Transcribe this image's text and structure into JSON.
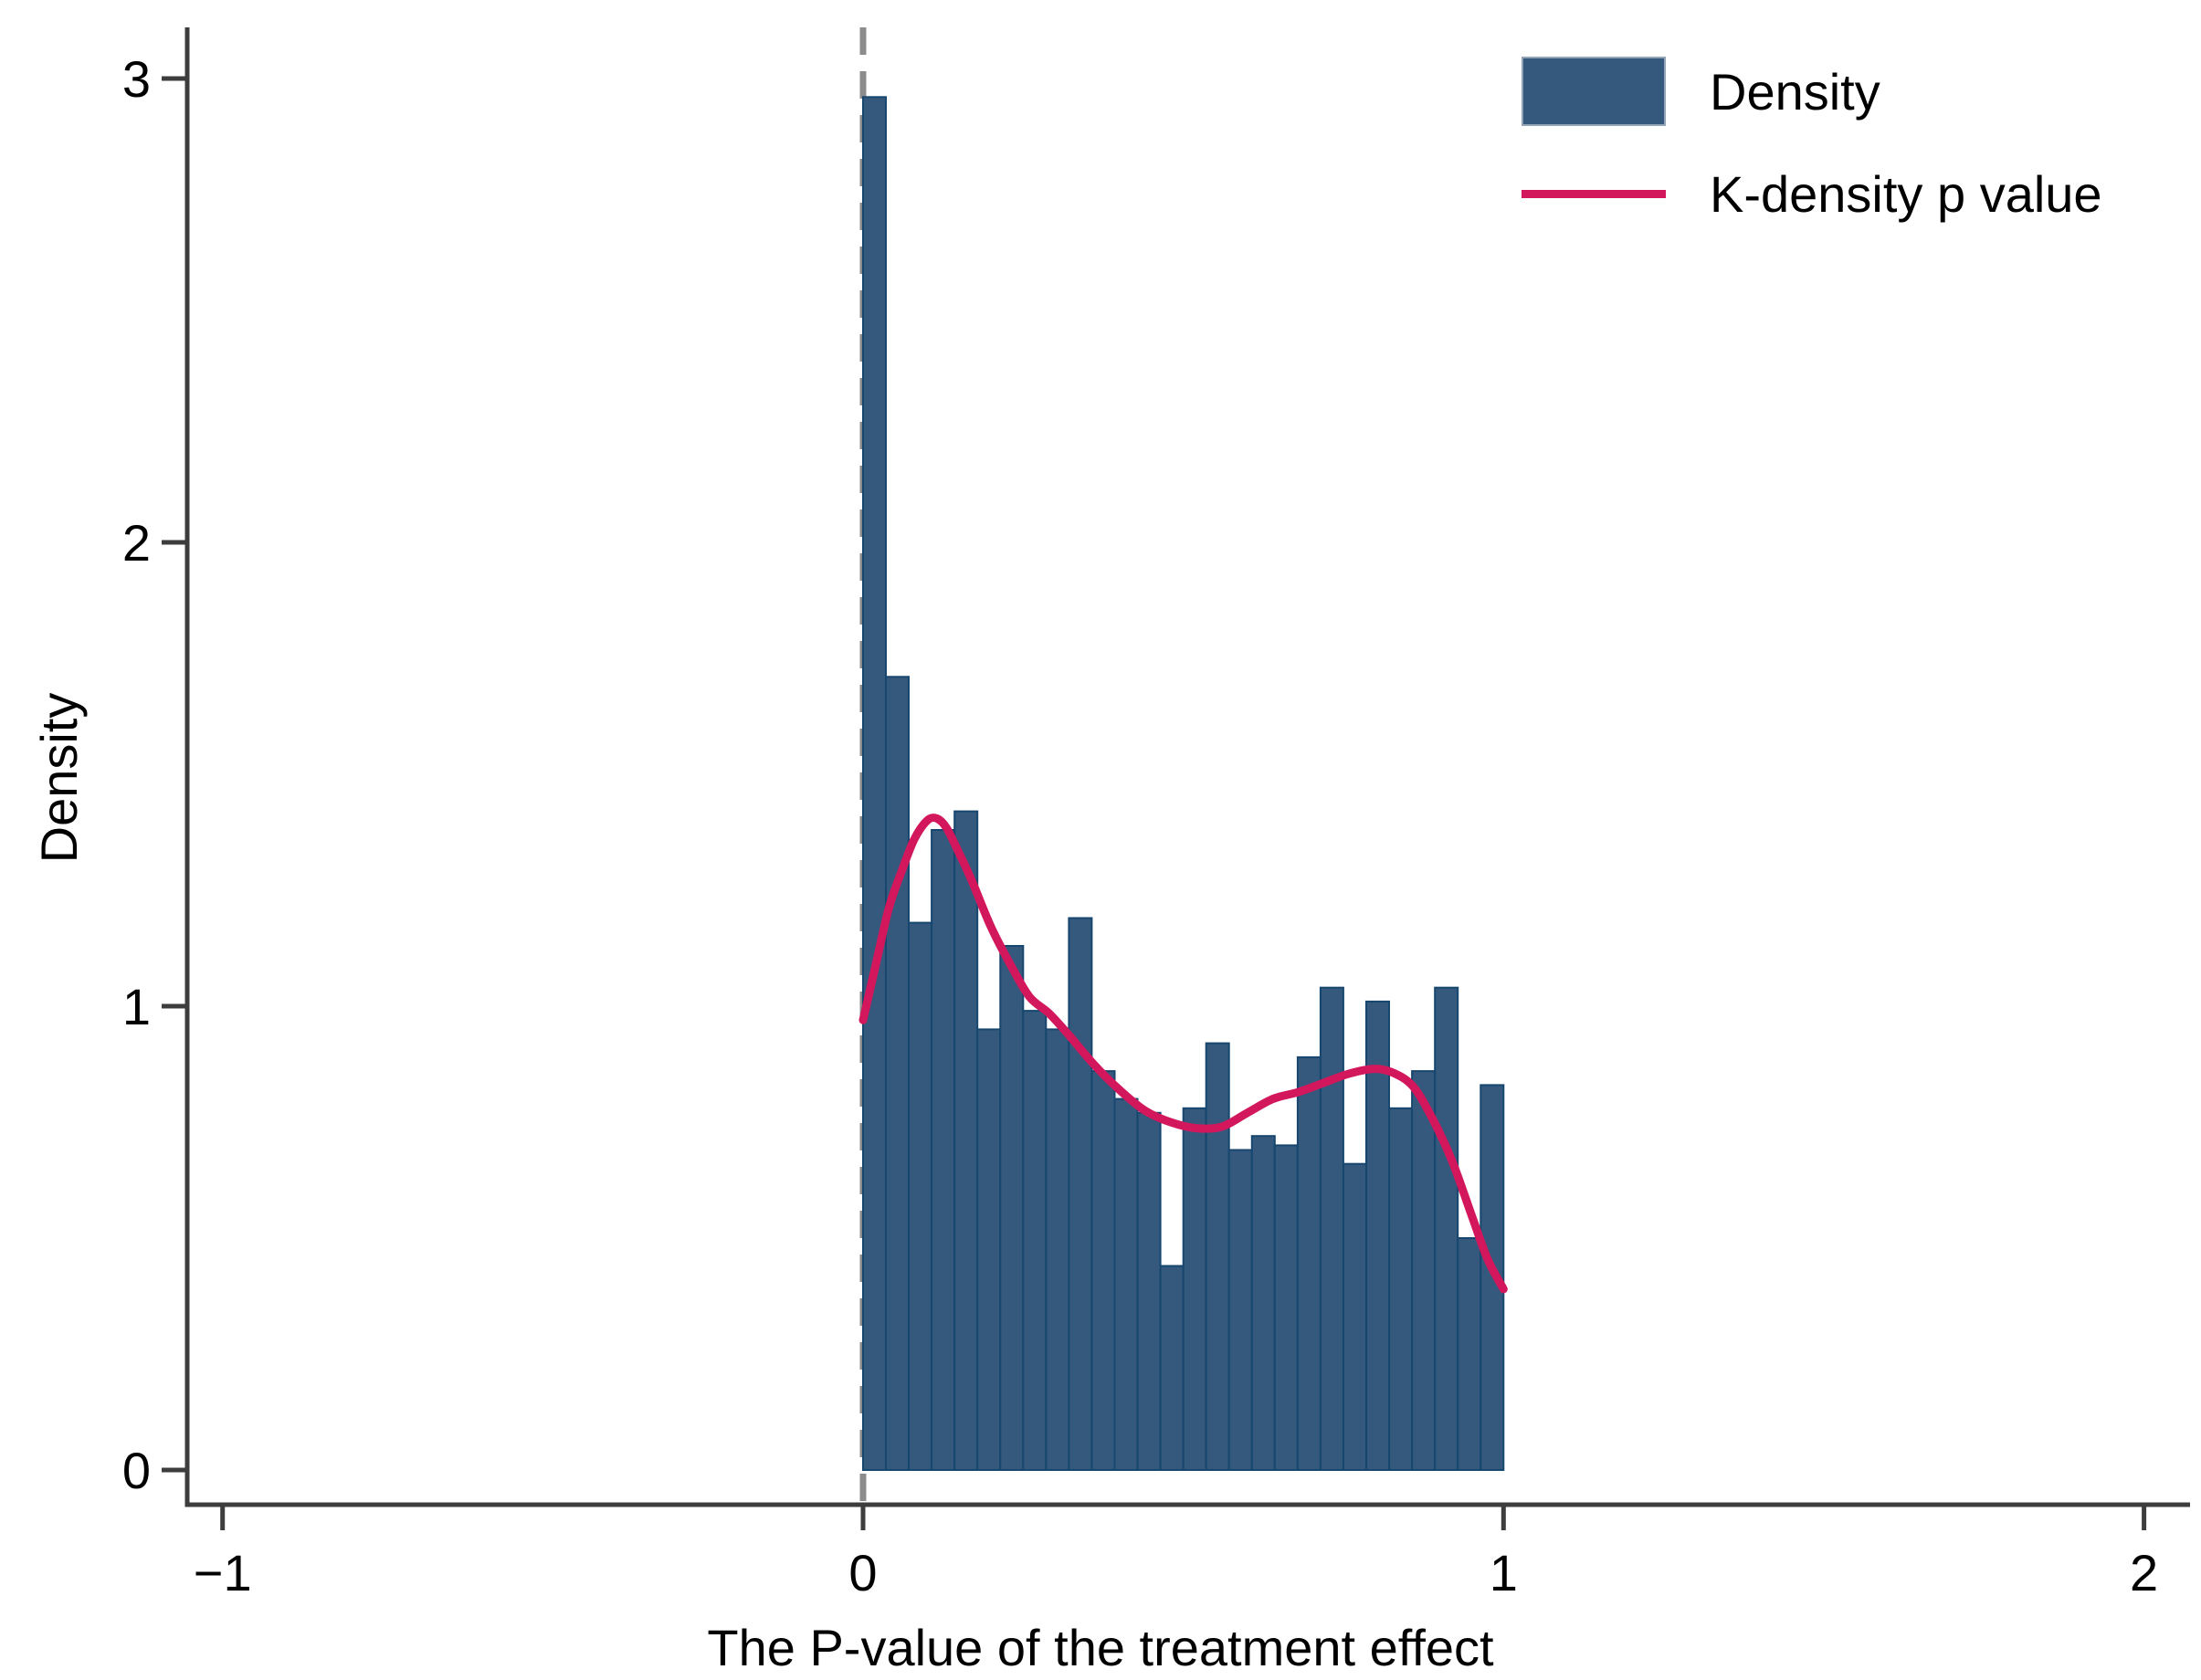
{
  "chart_data": {
    "type": "bar",
    "subtype": "histogram-with-kde-overlay",
    "title": "",
    "xlabel": "The P-value of the treatment effect",
    "ylabel": "Density",
    "xlim": [
      -1.35,
      2.1
    ],
    "ylim": [
      0,
      3.1
    ],
    "grid": false,
    "x_ticks": [
      {
        "v": -1,
        "label": "−1"
      },
      {
        "v": 0,
        "label": "0"
      },
      {
        "v": 1,
        "label": "1"
      },
      {
        "v": 2,
        "label": "2"
      }
    ],
    "y_ticks": [
      {
        "v": 0,
        "label": "0"
      },
      {
        "v": 1,
        "label": "1"
      },
      {
        "v": 2,
        "label": "2"
      },
      {
        "v": 3,
        "label": "3"
      }
    ],
    "histogram": {
      "bin_start": 0,
      "bin_width": 0.0357143,
      "densities": [
        2.96,
        1.71,
        1.18,
        1.38,
        1.42,
        0.95,
        1.13,
        0.99,
        0.95,
        1.19,
        0.86,
        0.8,
        0.77,
        0.44,
        0.78,
        0.92,
        0.69,
        0.72,
        0.7,
        0.89,
        1.04,
        0.66,
        1.01,
        0.78,
        0.86,
        1.04,
        0.5,
        0.83
      ]
    },
    "kde": {
      "name": "K-density p value",
      "points": [
        [
          0.0,
          0.97
        ],
        [
          0.02,
          1.09
        ],
        [
          0.04,
          1.21
        ],
        [
          0.06,
          1.29
        ],
        [
          0.08,
          1.36
        ],
        [
          0.1,
          1.4
        ],
        [
          0.115,
          1.405
        ],
        [
          0.13,
          1.385
        ],
        [
          0.15,
          1.33
        ],
        [
          0.17,
          1.27
        ],
        [
          0.2,
          1.17
        ],
        [
          0.23,
          1.09
        ],
        [
          0.26,
          1.02
        ],
        [
          0.29,
          0.985
        ],
        [
          0.32,
          0.94
        ],
        [
          0.36,
          0.875
        ],
        [
          0.4,
          0.82
        ],
        [
          0.44,
          0.775
        ],
        [
          0.48,
          0.75
        ],
        [
          0.52,
          0.737
        ],
        [
          0.56,
          0.74
        ],
        [
          0.6,
          0.77
        ],
        [
          0.64,
          0.8
        ],
        [
          0.68,
          0.815
        ],
        [
          0.72,
          0.835
        ],
        [
          0.76,
          0.855
        ],
        [
          0.8,
          0.865
        ],
        [
          0.83,
          0.855
        ],
        [
          0.86,
          0.825
        ],
        [
          0.89,
          0.755
        ],
        [
          0.92,
          0.665
        ],
        [
          0.95,
          0.55
        ],
        [
          0.975,
          0.455
        ],
        [
          1.0,
          0.39
        ]
      ]
    },
    "reference_line_x": 0,
    "legend_position": "top-right-inside",
    "legend": [
      {
        "label": "Density",
        "type": "box"
      },
      {
        "label": "K-density p value",
        "type": "line"
      }
    ],
    "colors": {
      "bar_fill": "#35597D",
      "bar_edge": "#17466E",
      "kde_line": "#D2175C",
      "reference_line": "#8C8C8C",
      "axis": "#3D3D3D",
      "text": "#000000",
      "background": "#FFFFFF",
      "legend_swatch_border": "#93A5B5"
    }
  }
}
